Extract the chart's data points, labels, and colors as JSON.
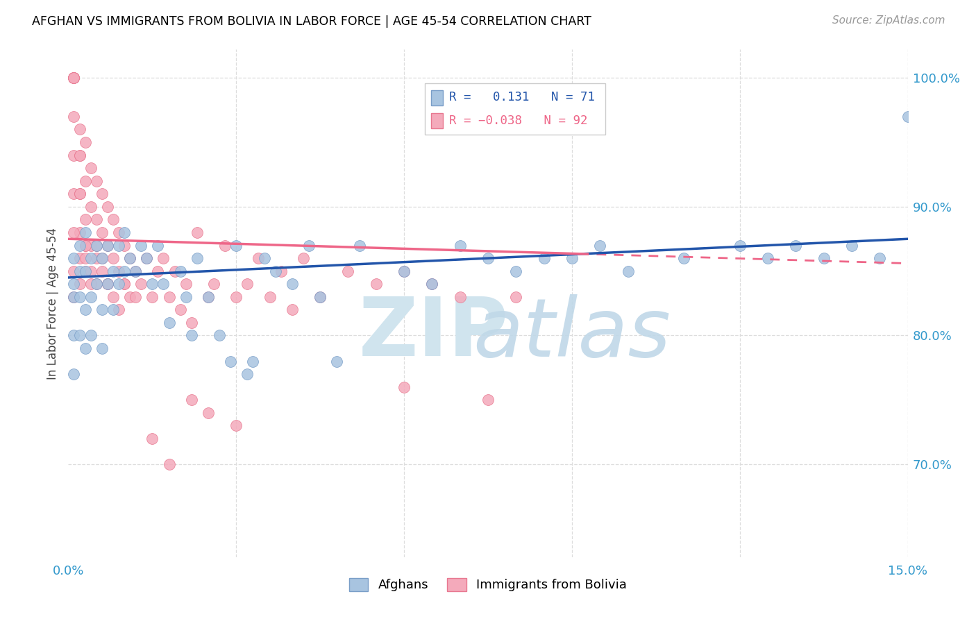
{
  "title": "AFGHAN VS IMMIGRANTS FROM BOLIVIA IN LABOR FORCE | AGE 45-54 CORRELATION CHART",
  "source": "Source: ZipAtlas.com",
  "ylabel": "In Labor Force | Age 45-54",
  "xlim": [
    0.0,
    0.15
  ],
  "ylim": [
    0.628,
    1.022
  ],
  "xtick_values": [
    0.0,
    0.03,
    0.06,
    0.09,
    0.12,
    0.15
  ],
  "xtick_labels": [
    "0.0%",
    "",
    "",
    "",
    "",
    "15.0%"
  ],
  "ytick_values": [
    0.7,
    0.8,
    0.9,
    1.0
  ],
  "ytick_labels": [
    "70.0%",
    "80.0%",
    "90.0%",
    "100.0%"
  ],
  "r_afghan": 0.131,
  "n_afghan": 71,
  "r_bolivia": -0.038,
  "n_bolivia": 92,
  "afghan_color": "#A8C4E0",
  "bolivia_color": "#F4AABB",
  "afghan_edge_color": "#7A9EC8",
  "bolivia_edge_color": "#E87890",
  "afghan_line_color": "#2255AA",
  "bolivia_line_color": "#EE6688",
  "watermark_zip_color": "#D0E4EE",
  "watermark_atlas_color": "#C0D8E8",
  "afghans_x": [
    0.001,
    0.001,
    0.001,
    0.001,
    0.001,
    0.002,
    0.002,
    0.002,
    0.002,
    0.003,
    0.003,
    0.003,
    0.003,
    0.004,
    0.004,
    0.004,
    0.005,
    0.005,
    0.006,
    0.006,
    0.006,
    0.007,
    0.007,
    0.008,
    0.008,
    0.009,
    0.009,
    0.01,
    0.01,
    0.011,
    0.012,
    0.013,
    0.014,
    0.015,
    0.016,
    0.017,
    0.018,
    0.02,
    0.021,
    0.022,
    0.023,
    0.025,
    0.027,
    0.029,
    0.03,
    0.032,
    0.033,
    0.035,
    0.037,
    0.04,
    0.043,
    0.045,
    0.048,
    0.052,
    0.06,
    0.065,
    0.07,
    0.075,
    0.08,
    0.085,
    0.09,
    0.095,
    0.1,
    0.11,
    0.12,
    0.125,
    0.13,
    0.135,
    0.14,
    0.145,
    0.15
  ],
  "afghans_y": [
    0.83,
    0.86,
    0.8,
    0.77,
    0.84,
    0.87,
    0.83,
    0.8,
    0.85,
    0.88,
    0.85,
    0.82,
    0.79,
    0.86,
    0.83,
    0.8,
    0.87,
    0.84,
    0.86,
    0.82,
    0.79,
    0.87,
    0.84,
    0.85,
    0.82,
    0.87,
    0.84,
    0.88,
    0.85,
    0.86,
    0.85,
    0.87,
    0.86,
    0.84,
    0.87,
    0.84,
    0.81,
    0.85,
    0.83,
    0.8,
    0.86,
    0.83,
    0.8,
    0.78,
    0.87,
    0.77,
    0.78,
    0.86,
    0.85,
    0.84,
    0.87,
    0.83,
    0.78,
    0.87,
    0.85,
    0.84,
    0.87,
    0.86,
    0.85,
    0.86,
    0.86,
    0.87,
    0.85,
    0.86,
    0.87,
    0.86,
    0.87,
    0.86,
    0.87,
    0.86,
    0.97
  ],
  "bolivia_x": [
    0.001,
    0.001,
    0.001,
    0.001,
    0.001,
    0.001,
    0.001,
    0.001,
    0.002,
    0.002,
    0.002,
    0.002,
    0.002,
    0.002,
    0.003,
    0.003,
    0.003,
    0.003,
    0.003,
    0.004,
    0.004,
    0.004,
    0.004,
    0.005,
    0.005,
    0.005,
    0.005,
    0.006,
    0.006,
    0.006,
    0.007,
    0.007,
    0.007,
    0.008,
    0.008,
    0.009,
    0.009,
    0.01,
    0.01,
    0.011,
    0.011,
    0.012,
    0.013,
    0.014,
    0.015,
    0.016,
    0.017,
    0.018,
    0.019,
    0.02,
    0.021,
    0.022,
    0.023,
    0.025,
    0.026,
    0.028,
    0.03,
    0.032,
    0.034,
    0.036,
    0.038,
    0.04,
    0.042,
    0.045,
    0.05,
    0.055,
    0.06,
    0.065,
    0.07,
    0.08,
    0.001,
    0.001,
    0.001,
    0.002,
    0.002,
    0.003,
    0.003,
    0.004,
    0.005,
    0.006,
    0.007,
    0.008,
    0.009,
    0.01,
    0.012,
    0.015,
    0.018,
    0.022,
    0.025,
    0.03,
    0.06,
    0.075
  ],
  "bolivia_y": [
    1.0,
    1.0,
    1.0,
    1.0,
    1.0,
    0.97,
    0.94,
    0.91,
    0.96,
    0.94,
    0.91,
    0.94,
    0.91,
    0.88,
    0.95,
    0.92,
    0.89,
    0.87,
    0.85,
    0.93,
    0.9,
    0.87,
    0.85,
    0.92,
    0.89,
    0.86,
    0.84,
    0.91,
    0.88,
    0.85,
    0.9,
    0.87,
    0.84,
    0.89,
    0.86,
    0.88,
    0.85,
    0.87,
    0.84,
    0.86,
    0.83,
    0.85,
    0.84,
    0.86,
    0.83,
    0.85,
    0.86,
    0.83,
    0.85,
    0.82,
    0.84,
    0.81,
    0.88,
    0.83,
    0.84,
    0.87,
    0.83,
    0.84,
    0.86,
    0.83,
    0.85,
    0.82,
    0.86,
    0.83,
    0.85,
    0.84,
    0.85,
    0.84,
    0.83,
    0.83,
    0.88,
    0.85,
    0.83,
    0.86,
    0.84,
    0.87,
    0.86,
    0.84,
    0.87,
    0.86,
    0.84,
    0.83,
    0.82,
    0.84,
    0.83,
    0.72,
    0.7,
    0.75,
    0.74,
    0.73,
    0.76,
    0.75
  ]
}
